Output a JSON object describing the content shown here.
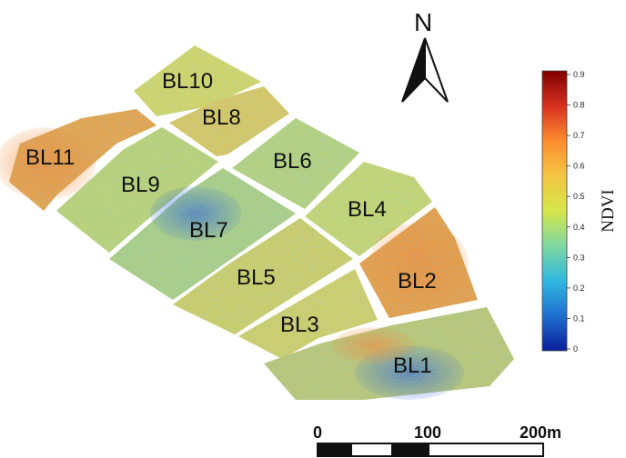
{
  "blocks": [
    {
      "id": "BL10",
      "label": "BL10"
    },
    {
      "id": "BL8",
      "label": "BL8"
    },
    {
      "id": "BL11",
      "label": "BL11"
    },
    {
      "id": "BL9",
      "label": "BL9"
    },
    {
      "id": "BL6",
      "label": "BL6"
    },
    {
      "id": "BL7",
      "label": "BL7"
    },
    {
      "id": "BL4",
      "label": "BL4"
    },
    {
      "id": "BL5",
      "label": "BL5"
    },
    {
      "id": "BL2",
      "label": "BL2"
    },
    {
      "id": "BL3",
      "label": "BL3"
    },
    {
      "id": "BL1",
      "label": "BL1"
    }
  ],
  "north_arrow": {
    "letter": "N"
  },
  "colorbar": {
    "title": "NDVI",
    "ticks": [
      "0.9",
      "0.8",
      "0.7",
      "0.6",
      "0.5",
      "0.4",
      "0.3",
      "0.2",
      "0.1",
      "0"
    ],
    "colors": [
      "#7f0000",
      "#d7301f",
      "#fc8d30",
      "#f4c542",
      "#d5e64a",
      "#7fd8a0",
      "#30b8e0",
      "#1f6fd0",
      "#0a1f9a"
    ]
  },
  "scale_bar": {
    "labels": [
      "0",
      "100",
      "200m"
    ]
  },
  "palette": {
    "field_base": "#c8d860",
    "road": "#ffffff"
  }
}
